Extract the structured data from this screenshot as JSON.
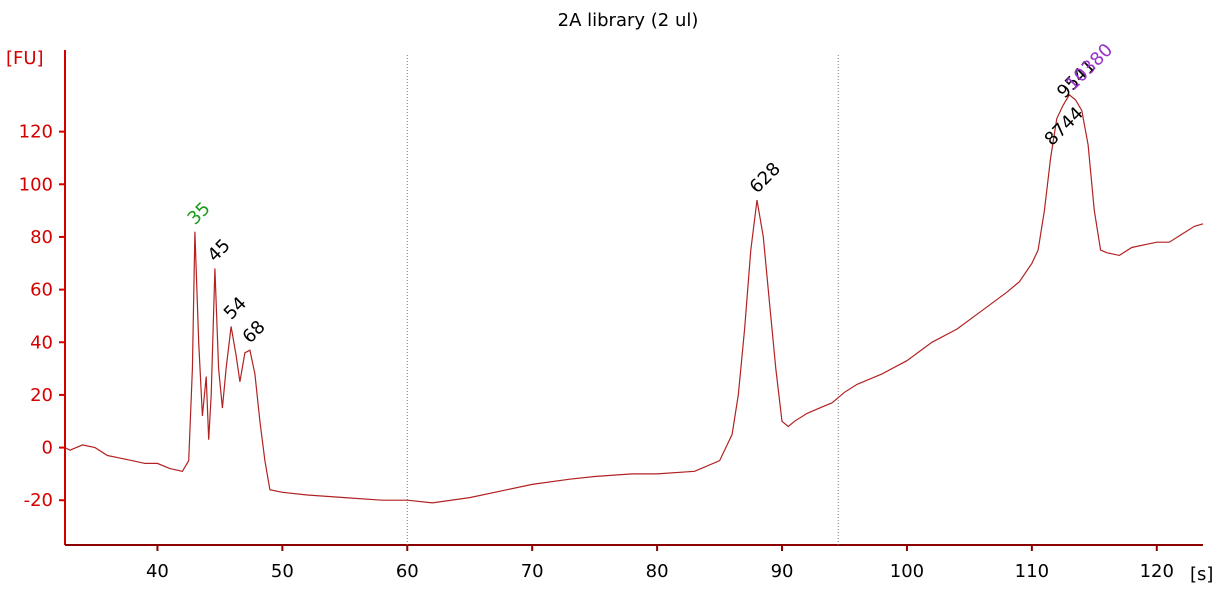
{
  "chart_data": {
    "type": "line",
    "title": "2A library (2 ul)",
    "y_label": "[FU]",
    "x_label": "[s]",
    "x": [
      32.6,
      33,
      34,
      35,
      36,
      37,
      38,
      39,
      40,
      41,
      42,
      42.5,
      42.8,
      43,
      43.3,
      43.6,
      43.9,
      44.1,
      44.3,
      44.6,
      44.9,
      45.2,
      45.5,
      45.9,
      46.3,
      46.6,
      47,
      47.4,
      47.8,
      48.2,
      48.6,
      49,
      50,
      52,
      55,
      58,
      60,
      62,
      65,
      68,
      70,
      73,
      75,
      78,
      80,
      83,
      85,
      86,
      86.5,
      87,
      87.5,
      88,
      88.5,
      89,
      89.5,
      90,
      90.5,
      91,
      92,
      93,
      94,
      95,
      96,
      98,
      100,
      102,
      104,
      106,
      108,
      109,
      110,
      110.5,
      111,
      111.5,
      112,
      112.5,
      113,
      113.5,
      114,
      114.5,
      115,
      115.5,
      116,
      117,
      118,
      119,
      120,
      121,
      122,
      123,
      123.7
    ],
    "series": [
      {
        "name": "2A library",
        "color": "#b22222",
        "values": [
          0,
          -1,
          1,
          0,
          -3,
          -4,
          -5,
          -6,
          -6,
          -8,
          -9,
          -5,
          30,
          82,
          40,
          12,
          27,
          3,
          20,
          68,
          30,
          15,
          30,
          46,
          35,
          25,
          36,
          37,
          28,
          10,
          -5,
          -16,
          -17,
          -18,
          -19,
          -20,
          -20,
          -21,
          -19,
          -16,
          -14,
          -12,
          -11,
          -10,
          -10,
          -9,
          -5,
          5,
          20,
          45,
          75,
          94,
          80,
          55,
          30,
          10,
          8,
          10,
          13,
          15,
          17,
          21,
          24,
          28,
          33,
          40,
          45,
          52,
          59,
          63,
          70,
          75,
          90,
          110,
          125,
          130,
          134,
          132,
          128,
          115,
          90,
          75,
          74,
          73,
          76,
          77,
          78,
          78,
          81,
          84,
          85
        ]
      }
    ],
    "xlim": [
      32.6,
      123.7
    ],
    "ylim": [
      -37,
      151
    ],
    "xticks": [
      40,
      50,
      60,
      70,
      80,
      90,
      100,
      110,
      120
    ],
    "yticks": [
      -20,
      0,
      20,
      40,
      60,
      80,
      100,
      120
    ],
    "markers": [
      60,
      94.5
    ],
    "peaks": [
      {
        "label": "35",
        "x": 43,
        "y": 82,
        "color": "#1a9a1a"
      },
      {
        "label": "45",
        "x": 44.6,
        "y": 68,
        "color": "#000000"
      },
      {
        "label": "54",
        "x": 45.9,
        "y": 46,
        "color": "#000000"
      },
      {
        "label": "68",
        "x": 47.4,
        "y": 37,
        "color": "#000000"
      },
      {
        "label": "628",
        "x": 88,
        "y": 94,
        "color": "#000000"
      },
      {
        "label": "8744",
        "x": 111.6,
        "y": 112,
        "color": "#000000"
      },
      {
        "label": "9541",
        "x": 112.6,
        "y": 130,
        "color": "#000000"
      },
      {
        "label": "10380",
        "x": 113.3,
        "y": 133,
        "color": "#9932cc"
      }
    ]
  }
}
